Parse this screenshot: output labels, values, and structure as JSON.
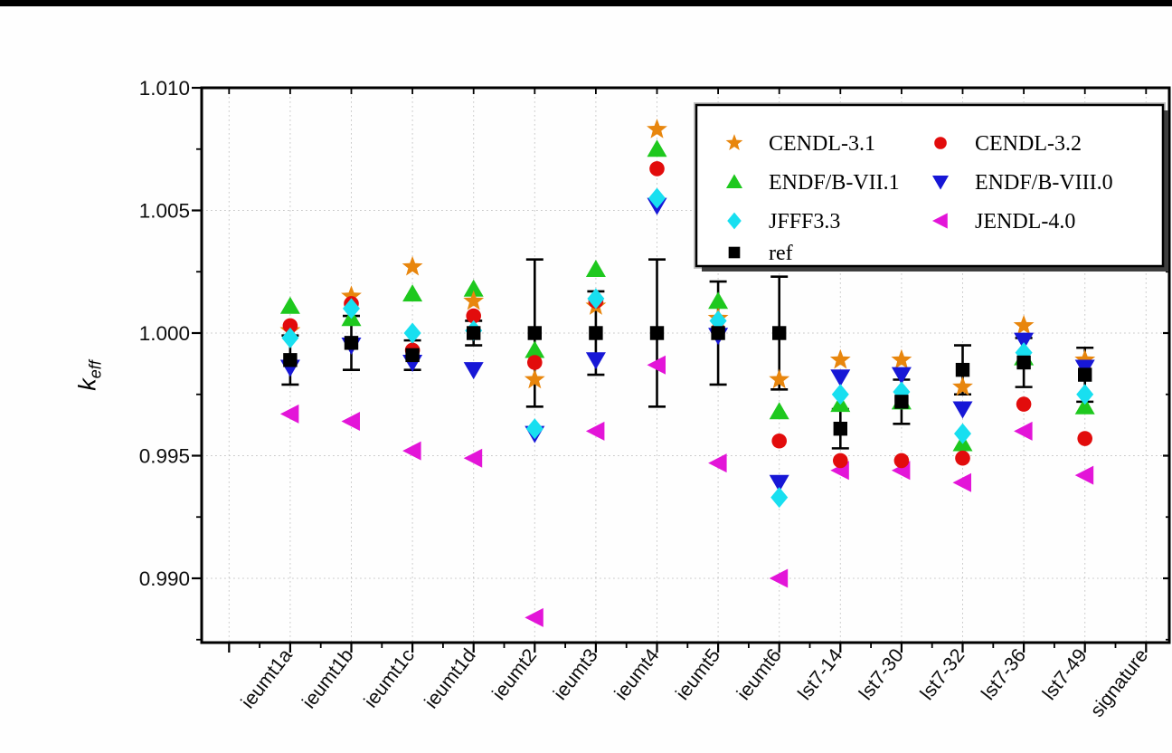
{
  "page": {
    "background": "#fefefe",
    "top_bar_color": "#000000",
    "frame_color": "#000000",
    "grid_color": "#c9c9c9"
  },
  "chart_data": {
    "type": "scatter",
    "title": "",
    "ylabel_main": "k",
    "ylabel_sub": "eff",
    "xlabel": "",
    "ylim": [
      0.9874,
      1.01
    ],
    "yticks": [
      0.99,
      0.995,
      1.0,
      1.005,
      1.01
    ],
    "ytick_labels": [
      "0.990",
      "0.995",
      "1.000",
      "1.005",
      "1.010"
    ],
    "grid": "dotted",
    "legend_position": "top-right-inside",
    "categories": [
      "ieumt1a",
      "ieumt1b",
      "ieumt1c",
      "ieumt1d",
      "ieumt2",
      "ieumt3",
      "ieumt4",
      "ieumt5",
      "ieumt6",
      "lst7-14",
      "lst7-30",
      "lst7-32",
      "lst7-36",
      "lst7-49",
      "signature"
    ],
    "series": [
      {
        "name": "CENDL-3.1",
        "marker": "star",
        "color": "#E8860D",
        "values": [
          1.0001,
          1.0015,
          1.0027,
          1.0013,
          0.9981,
          1.0011,
          1.0083,
          1.0006,
          0.9981,
          0.9989,
          0.9989,
          0.9978,
          1.0003,
          0.9989,
          null
        ]
      },
      {
        "name": "CENDL-3.2",
        "marker": "circle",
        "color": "#E20C0C",
        "values": [
          1.0003,
          1.0012,
          0.9993,
          1.0007,
          0.9988,
          1.0013,
          1.0067,
          1.0001,
          0.9956,
          0.9948,
          0.9948,
          0.9949,
          0.9971,
          0.9957,
          null
        ]
      },
      {
        "name": "ENDF/B-VII.1",
        "marker": "triangle-up",
        "color": "#1EC81E",
        "values": [
          1.0011,
          1.0006,
          1.0016,
          1.0018,
          0.9993,
          1.0026,
          1.0075,
          1.0013,
          0.9968,
          0.9971,
          0.9972,
          0.9955,
          0.999,
          0.997,
          null
        ]
      },
      {
        "name": "ENDF/B-VIII.0",
        "marker": "triangle-down",
        "color": "#1717D6",
        "values": [
          0.9986,
          0.9995,
          0.9988,
          0.9985,
          0.9959,
          0.9989,
          1.0052,
          0.9999,
          0.9939,
          0.9982,
          0.9983,
          0.9969,
          0.9997,
          0.9986,
          null
        ]
      },
      {
        "name": "JFFF3.3",
        "marker": "diamond",
        "color": "#18DFF0",
        "values": [
          0.9998,
          1.001,
          1.0,
          1.0001,
          0.9961,
          1.0014,
          1.0055,
          1.0005,
          0.9933,
          0.9975,
          0.9976,
          0.9959,
          0.9992,
          0.9975,
          null
        ]
      },
      {
        "name": "JENDL-4.0",
        "marker": "triangle-left",
        "color": "#E315D8",
        "values": [
          0.9967,
          0.9964,
          0.9952,
          0.9949,
          0.9884,
          0.996,
          0.9987,
          0.9947,
          0.99,
          0.9944,
          0.9944,
          0.9939,
          0.996,
          0.9942,
          null
        ]
      },
      {
        "name": "ref",
        "marker": "square",
        "color": "#000000",
        "values": [
          0.9989,
          0.9996,
          0.9991,
          1.0,
          1.0,
          1.0,
          1.0,
          1.0,
          1.0,
          0.9961,
          0.9972,
          0.9985,
          0.9988,
          0.9983,
          null
        ],
        "errors": [
          0.001,
          0.0011,
          0.0006,
          0.0005,
          0.003,
          0.0017,
          0.003,
          0.0021,
          0.0023,
          0.0008,
          0.0009,
          0.001,
          0.001,
          0.0011,
          null
        ]
      }
    ]
  }
}
